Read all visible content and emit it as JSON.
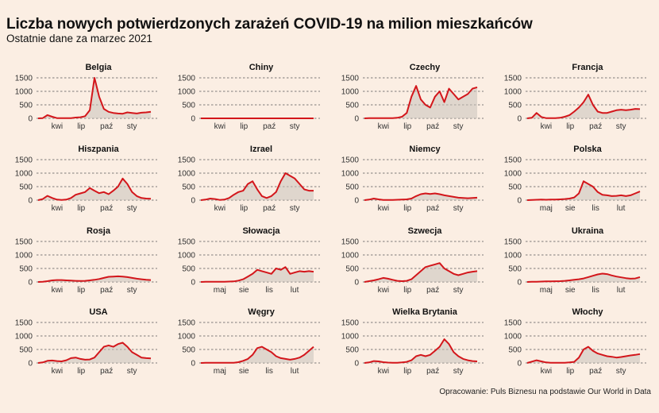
{
  "title": "Liczba nowych potwierdzonych zarażeń COVID-19 na milion mieszkańców",
  "subtitle": "Ostatnie dane za marzec 2021",
  "source": "Opracowanie: Puls Biznesu na podstawie Our World in Data",
  "colors": {
    "line": "#d3161b",
    "area": "#c9c3bc",
    "background": "#fbeee3"
  },
  "chart_data": {
    "type": "line",
    "layout": "small-multiples",
    "y_ticks": [
      0,
      500,
      1000,
      1500
    ],
    "ylim": [
      0,
      1500
    ],
    "grid": true,
    "x_tick_sets": {
      "early": [
        "kwi",
        "lip",
        "paź",
        "sty"
      ],
      "late": [
        "maj",
        "sie",
        "lis",
        "lut"
      ]
    },
    "panels": [
      {
        "name": "Belgia",
        "xticks": "early",
        "x": [
          0,
          1,
          2,
          3,
          4,
          5,
          6,
          7,
          8,
          9,
          10,
          11,
          12,
          13,
          14,
          15,
          16,
          17,
          18,
          19,
          20,
          21,
          22,
          23,
          24
        ],
        "values": [
          0,
          10,
          120,
          60,
          10,
          5,
          5,
          10,
          30,
          40,
          80,
          300,
          1520,
          800,
          350,
          240,
          200,
          180,
          170,
          220,
          200,
          180,
          210,
          220,
          240
        ]
      },
      {
        "name": "Chiny",
        "xticks": "early",
        "x": [
          0,
          5,
          10,
          15,
          20,
          24
        ],
        "values": [
          1,
          0,
          0,
          0,
          0,
          0
        ]
      },
      {
        "name": "Czechy",
        "xticks": "early",
        "x": [
          0,
          1,
          2,
          3,
          4,
          5,
          6,
          7,
          8,
          9,
          10,
          11,
          12,
          13,
          14,
          15,
          16,
          17,
          18,
          19,
          20,
          21,
          22,
          23,
          24
        ],
        "values": [
          0,
          5,
          10,
          5,
          5,
          5,
          10,
          20,
          60,
          200,
          800,
          1200,
          700,
          500,
          400,
          800,
          1000,
          600,
          1100,
          900,
          700,
          800,
          900,
          1100,
          1150
        ]
      },
      {
        "name": "Francja",
        "xticks": "early",
        "x": [
          0,
          1,
          2,
          3,
          4,
          5,
          6,
          7,
          8,
          9,
          10,
          11,
          12,
          13,
          14,
          15,
          16,
          17,
          18,
          19,
          20,
          21,
          22,
          23,
          24
        ],
        "values": [
          0,
          20,
          200,
          50,
          10,
          10,
          10,
          20,
          60,
          120,
          250,
          400,
          600,
          880,
          500,
          250,
          200,
          200,
          250,
          300,
          320,
          300,
          320,
          350,
          340
        ]
      },
      {
        "name": "Hiszpania",
        "xticks": "early",
        "x": [
          0,
          1,
          2,
          3,
          4,
          5,
          6,
          7,
          8,
          9,
          10,
          11,
          12,
          13,
          14,
          15,
          16,
          17,
          18,
          19,
          20,
          21,
          22,
          23,
          24
        ],
        "values": [
          0,
          40,
          160,
          80,
          20,
          10,
          20,
          80,
          200,
          250,
          300,
          450,
          350,
          260,
          300,
          220,
          350,
          500,
          800,
          600,
          300,
          150,
          80,
          60,
          50
        ]
      },
      {
        "name": "Izrael",
        "xticks": "early",
        "x": [
          0,
          1,
          2,
          3,
          4,
          5,
          6,
          7,
          8,
          9,
          10,
          11,
          12,
          13,
          14,
          15,
          16,
          17,
          18,
          19,
          20,
          21,
          22,
          23,
          24
        ],
        "values": [
          0,
          20,
          60,
          40,
          10,
          20,
          80,
          200,
          300,
          350,
          600,
          700,
          400,
          150,
          80,
          150,
          300,
          700,
          1000,
          900,
          800,
          600,
          400,
          350,
          350
        ]
      },
      {
        "name": "Niemcy",
        "xticks": "early",
        "x": [
          0,
          1,
          2,
          3,
          4,
          5,
          6,
          7,
          8,
          9,
          10,
          11,
          12,
          13,
          14,
          15,
          16,
          17,
          18,
          19,
          20,
          21,
          22,
          23,
          24
        ],
        "values": [
          0,
          20,
          60,
          30,
          10,
          5,
          10,
          15,
          20,
          30,
          60,
          150,
          220,
          250,
          230,
          250,
          220,
          180,
          150,
          120,
          90,
          80,
          70,
          80,
          90
        ]
      },
      {
        "name": "Polska",
        "xticks": "late",
        "x": [
          0,
          1,
          2,
          3,
          4,
          5,
          6,
          7,
          8,
          9,
          10,
          11,
          12,
          13,
          14,
          15,
          16,
          17,
          18,
          19,
          20,
          21,
          22,
          23,
          24
        ],
        "values": [
          0,
          10,
          15,
          20,
          15,
          20,
          20,
          30,
          40,
          60,
          100,
          250,
          700,
          600,
          500,
          300,
          200,
          180,
          150,
          160,
          180,
          150,
          180,
          250,
          320
        ]
      },
      {
        "name": "Rosja",
        "xticks": "early",
        "x": [
          0,
          1,
          2,
          3,
          4,
          5,
          6,
          7,
          8,
          9,
          10,
          11,
          12,
          13,
          14,
          15,
          16,
          17,
          18,
          19,
          20,
          21,
          22,
          23,
          24
        ],
        "values": [
          0,
          10,
          30,
          60,
          70,
          70,
          60,
          50,
          40,
          35,
          40,
          60,
          80,
          110,
          150,
          190,
          200,
          210,
          200,
          180,
          150,
          120,
          100,
          80,
          70
        ]
      },
      {
        "name": "Słowacja",
        "xticks": "late",
        "x": [
          0,
          1,
          2,
          3,
          4,
          5,
          6,
          7,
          8,
          9,
          10,
          11,
          12,
          13,
          14,
          15,
          16,
          17,
          18,
          19,
          20,
          21,
          22,
          23,
          24
        ],
        "values": [
          0,
          5,
          5,
          5,
          5,
          10,
          15,
          20,
          50,
          100,
          200,
          300,
          450,
          400,
          350,
          300,
          500,
          450,
          550,
          300,
          350,
          400,
          380,
          400,
          380
        ]
      },
      {
        "name": "Szwecja",
        "xticks": "early",
        "x": [
          0,
          1,
          2,
          3,
          4,
          5,
          6,
          7,
          8,
          9,
          10,
          11,
          12,
          13,
          14,
          15,
          16,
          17,
          18,
          19,
          20,
          21,
          22,
          23,
          24
        ],
        "values": [
          0,
          30,
          60,
          100,
          150,
          120,
          80,
          40,
          30,
          40,
          100,
          250,
          400,
          550,
          600,
          650,
          700,
          500,
          400,
          300,
          250,
          300,
          350,
          380,
          400
        ]
      },
      {
        "name": "Ukraina",
        "xticks": "late",
        "x": [
          0,
          1,
          2,
          3,
          4,
          5,
          6,
          7,
          8,
          9,
          10,
          11,
          12,
          13,
          14,
          15,
          16,
          17,
          18,
          19,
          20,
          21,
          22,
          23,
          24
        ],
        "values": [
          0,
          5,
          10,
          15,
          20,
          20,
          25,
          30,
          40,
          60,
          80,
          100,
          130,
          180,
          230,
          280,
          310,
          290,
          240,
          200,
          170,
          140,
          120,
          130,
          180
        ]
      },
      {
        "name": "USA",
        "xticks": "early",
        "x": [
          0,
          1,
          2,
          3,
          4,
          5,
          6,
          7,
          8,
          9,
          10,
          11,
          12,
          13,
          14,
          15,
          16,
          17,
          18,
          19,
          20,
          21,
          22,
          23,
          24
        ],
        "values": [
          0,
          20,
          80,
          90,
          70,
          60,
          100,
          180,
          200,
          150,
          120,
          130,
          200,
          400,
          600,
          650,
          600,
          700,
          750,
          600,
          400,
          300,
          200,
          180,
          170
        ]
      },
      {
        "name": "Węgry",
        "xticks": "late",
        "x": [
          0,
          1,
          2,
          3,
          4,
          5,
          6,
          7,
          8,
          9,
          10,
          11,
          12,
          13,
          14,
          15,
          16,
          17,
          18,
          19,
          20,
          21,
          22,
          23,
          24
        ],
        "values": [
          0,
          5,
          5,
          5,
          5,
          5,
          5,
          10,
          30,
          80,
          150,
          300,
          550,
          600,
          500,
          400,
          250,
          180,
          150,
          120,
          150,
          200,
          300,
          450,
          600
        ]
      },
      {
        "name": "Wielka Brytania",
        "xticks": "early",
        "x": [
          0,
          1,
          2,
          3,
          4,
          5,
          6,
          7,
          8,
          9,
          10,
          11,
          12,
          13,
          14,
          15,
          16,
          17,
          18,
          19,
          20,
          21,
          22,
          23,
          24
        ],
        "values": [
          0,
          20,
          70,
          60,
          30,
          15,
          10,
          10,
          20,
          40,
          100,
          250,
          300,
          250,
          300,
          450,
          600,
          880,
          700,
          400,
          250,
          150,
          100,
          70,
          60
        ]
      },
      {
        "name": "Włochy",
        "xticks": "early",
        "x": [
          0,
          1,
          2,
          3,
          4,
          5,
          6,
          7,
          8,
          9,
          10,
          11,
          12,
          13,
          14,
          15,
          16,
          17,
          18,
          19,
          20,
          21,
          22,
          23,
          24
        ],
        "values": [
          0,
          50,
          100,
          60,
          20,
          10,
          5,
          5,
          10,
          20,
          40,
          200,
          500,
          600,
          450,
          350,
          300,
          250,
          230,
          200,
          220,
          250,
          280,
          300,
          330
        ]
      }
    ]
  }
}
